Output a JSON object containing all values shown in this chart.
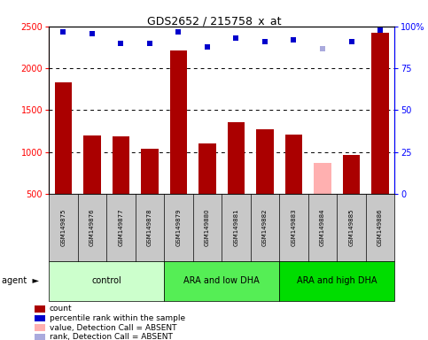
{
  "title": "GDS2652 / 215758_x_at",
  "samples": [
    "GSM149875",
    "GSM149876",
    "GSM149877",
    "GSM149878",
    "GSM149879",
    "GSM149880",
    "GSM149881",
    "GSM149882",
    "GSM149883",
    "GSM149884",
    "GSM149885",
    "GSM149886"
  ],
  "counts": [
    1830,
    1200,
    1185,
    1040,
    2210,
    1105,
    1360,
    1275,
    1210,
    870,
    960,
    2430
  ],
  "absent_flags": [
    false,
    false,
    false,
    false,
    false,
    false,
    false,
    false,
    false,
    true,
    false,
    false
  ],
  "percentile_ranks": [
    97,
    96,
    90,
    90,
    97,
    88,
    93,
    91,
    92,
    87,
    91,
    98
  ],
  "absent_rank_flags": [
    false,
    false,
    false,
    false,
    false,
    false,
    false,
    false,
    false,
    true,
    false,
    false
  ],
  "bar_color_normal": "#AA0000",
  "bar_color_absent": "#FFB0B0",
  "dot_color_normal": "#0000CC",
  "dot_color_absent": "#AAAADD",
  "ylim_left": [
    500,
    2500
  ],
  "ylim_right": [
    0,
    100
  ],
  "yticks_left": [
    500,
    1000,
    1500,
    2000,
    2500
  ],
  "yticks_right": [
    0,
    25,
    50,
    75,
    100
  ],
  "groups": [
    {
      "label": "control",
      "start": 0,
      "end": 3,
      "color": "#CCFFCC"
    },
    {
      "label": "ARA and low DHA",
      "start": 4,
      "end": 7,
      "color": "#55EE55"
    },
    {
      "label": "ARA and high DHA",
      "start": 8,
      "end": 11,
      "color": "#00DD00"
    }
  ],
  "legend_items": [
    {
      "label": "count",
      "color": "#AA0000"
    },
    {
      "label": "percentile rank within the sample",
      "color": "#0000CC"
    },
    {
      "label": "value, Detection Call = ABSENT",
      "color": "#FFB0B0"
    },
    {
      "label": "rank, Detection Call = ABSENT",
      "color": "#AAAADD"
    }
  ],
  "tick_area_color": "#C8C8C8",
  "bar_width": 0.6
}
